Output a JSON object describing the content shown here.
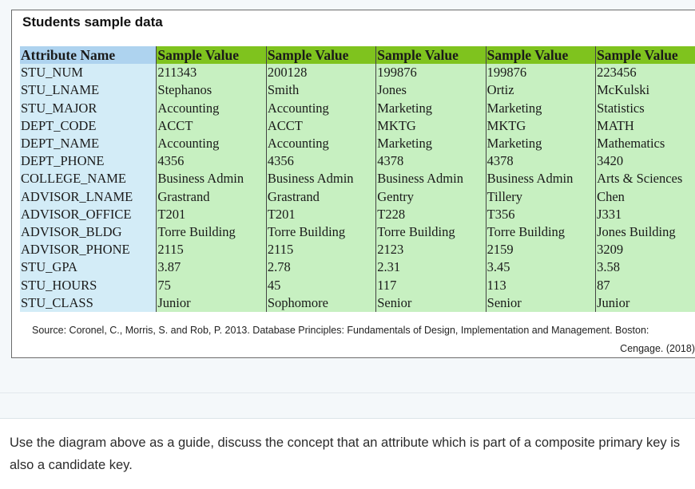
{
  "figure": {
    "title": "Students sample data",
    "table": {
      "headers": [
        "Attribute Name",
        "Sample Value",
        "Sample Value",
        "Sample Value",
        "Sample Value",
        "Sample Value"
      ],
      "rows": [
        [
          "STU_NUM",
          "211343",
          "200128",
          "199876",
          "199876",
          "223456"
        ],
        [
          "STU_LNAME",
          "Stephanos",
          "Smith",
          "Jones",
          "Ortiz",
          "McKulski"
        ],
        [
          "STU_MAJOR",
          "Accounting",
          "Accounting",
          "Marketing",
          "Marketing",
          "Statistics"
        ],
        [
          "DEPT_CODE",
          "ACCT",
          "ACCT",
          "MKTG",
          "MKTG",
          "MATH"
        ],
        [
          "DEPT_NAME",
          "Accounting",
          "Accounting",
          "Marketing",
          "Marketing",
          "Mathematics"
        ],
        [
          "DEPT_PHONE",
          "4356",
          "4356",
          "4378",
          "4378",
          "3420"
        ],
        [
          "COLLEGE_NAME",
          "Business Admin",
          "Business Admin",
          "Business Admin",
          "Business Admin",
          "Arts & Sciences"
        ],
        [
          "ADVISOR_LNAME",
          "Grastrand",
          "Grastrand",
          "Gentry",
          "Tillery",
          "Chen"
        ],
        [
          "ADVISOR_OFFICE",
          "T201",
          "T201",
          "T228",
          "T356",
          "J331"
        ],
        [
          "ADVISOR_BLDG",
          "Torre Building",
          "Torre Building",
          "Torre Building",
          "Torre Building",
          "Jones Building"
        ],
        [
          "ADVISOR_PHONE",
          "2115",
          "2115",
          "2123",
          "2159",
          "3209"
        ],
        [
          "STU_GPA",
          "3.87",
          "2.78",
          "2.31",
          "3.45",
          "3.58"
        ],
        [
          "STU_HOURS",
          "75",
          "45",
          "117",
          "113",
          "87"
        ],
        [
          "STU_CLASS",
          "Junior",
          "Sophomore",
          "Senior",
          "Senior",
          "Junior"
        ]
      ]
    },
    "source_line1": "Source: Coronel, C., Morris, S. and Rob, P. 2013. Database Principles: Fundamentals of Design, Implementation and Management. Boston:",
    "source_line2": "Cengage. (2018)"
  },
  "question": {
    "text": "Use the diagram above as a guide, discuss the concept that an attribute which is part of a composite primary key is also a candidate key."
  },
  "colors": {
    "header_attr_bg": "#aed3ef",
    "header_sample_bg": "#7fc31e",
    "attr_cell_bg": "#d3ecf7",
    "value_cell_bg": "#c7f0c1"
  }
}
